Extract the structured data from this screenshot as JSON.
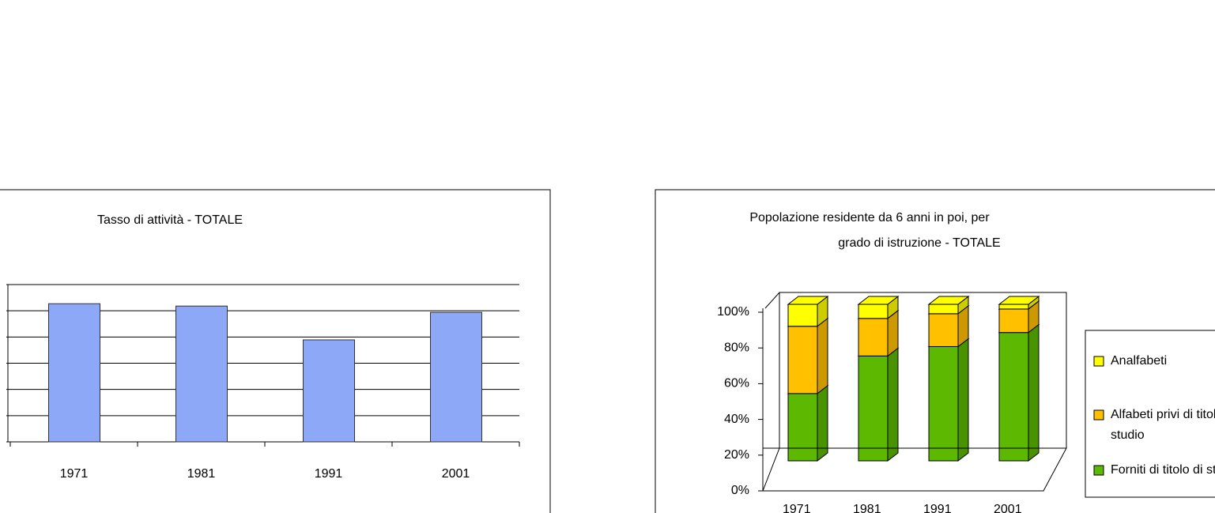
{
  "chart_data": [
    {
      "type": "bar",
      "title": "Tasso di attività - TOTALE",
      "categories": [
        "1971",
        "1981",
        "1991",
        "2001"
      ],
      "values": [
        5.27,
        5.18,
        3.89,
        4.94
      ],
      "color": "#8ea8f8",
      "ylim": [
        0,
        6
      ],
      "yticks": [
        0,
        1,
        2,
        3,
        4,
        5,
        6
      ],
      "grid": true
    },
    {
      "type": "stacked-bar-3d",
      "title": [
        "Popolazione residente da 6 anni in poi, per",
        "grado di istruzione - TOTALE"
      ],
      "categories": [
        "1971",
        "1981",
        "1991",
        "2001"
      ],
      "series": [
        {
          "name": "Forniti di titolo di studio",
          "color": "#5cb800",
          "values": [
            43,
            67,
            73,
            82
          ]
        },
        {
          "name": "Alfabeti privi di titolo di studio",
          "color": "#ffc000",
          "values": [
            43,
            24,
            21,
            15
          ]
        },
        {
          "name": "Analfabeti",
          "color": "#ffff00",
          "values": [
            14,
            9,
            6,
            3
          ]
        }
      ],
      "ylim": [
        0,
        100
      ],
      "yticks": [
        {
          "value": 0,
          "label": "0%"
        },
        {
          "value": 20,
          "label": "20%"
        },
        {
          "value": 40,
          "label": "40%"
        },
        {
          "value": 60,
          "label": "60%"
        },
        {
          "value": 80,
          "label": "80%"
        },
        {
          "value": 100,
          "label": "100%"
        }
      ],
      "legend": "right"
    }
  ]
}
